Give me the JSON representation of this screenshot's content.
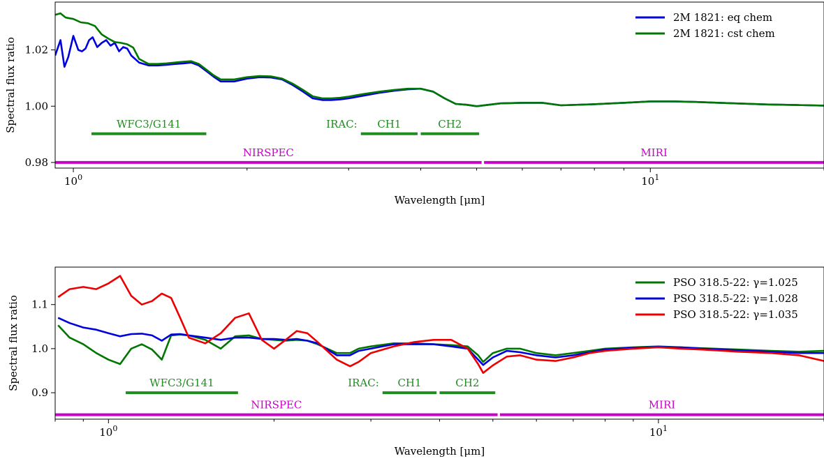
{
  "chart_data": [
    {
      "type": "line",
      "xscale": "log",
      "xlim": [
        0.93,
        20.0
      ],
      "ylim": [
        0.978,
        1.037
      ],
      "xlabel": "Wavelength [μm]",
      "ylabel": "Spectral flux ratio",
      "xticks": [
        {
          "value": 1,
          "base": "10",
          "exp": "0"
        },
        {
          "value": 10,
          "base": "10",
          "exp": "1"
        }
      ],
      "yticks": [
        {
          "value": 0.98,
          "label": "0.98"
        },
        {
          "value": 1.0,
          "label": "1.00"
        },
        {
          "value": 1.02,
          "label": "1.02"
        }
      ],
      "legend_position": "top-right",
      "series": [
        {
          "name": "2M 1821: eq chem",
          "color": "#0000dd",
          "x": [
            0.93,
            0.95,
            0.965,
            0.98,
            1.0,
            1.02,
            1.035,
            1.05,
            1.065,
            1.08,
            1.1,
            1.12,
            1.14,
            1.16,
            1.18,
            1.2,
            1.22,
            1.24,
            1.26,
            1.3,
            1.35,
            1.4,
            1.45,
            1.5,
            1.55,
            1.6,
            1.65,
            1.7,
            1.75,
            1.8,
            1.9,
            2.0,
            2.1,
            2.2,
            2.3,
            2.4,
            2.5,
            2.6,
            2.7,
            2.8,
            2.9,
            3.0,
            3.2,
            3.4,
            3.6,
            3.8,
            4.0,
            4.2,
            4.4,
            4.6,
            4.8,
            5.0,
            5.5,
            6.0,
            6.5,
            7.0,
            8.0,
            9.0,
            10.0,
            11.0,
            12.0,
            14.0,
            16.0,
            18.0,
            20.0
          ],
          "y": [
            1.018,
            1.0235,
            1.014,
            1.0175,
            1.025,
            1.02,
            1.0195,
            1.0205,
            1.0235,
            1.0245,
            1.021,
            1.0225,
            1.0235,
            1.0215,
            1.0225,
            1.0195,
            1.021,
            1.0205,
            1.018,
            1.0155,
            1.0145,
            1.0145,
            1.0147,
            1.015,
            1.0152,
            1.0155,
            1.0145,
            1.0125,
            1.0105,
            1.0088,
            1.0088,
            1.0098,
            1.0103,
            1.0102,
            1.0095,
            1.0075,
            1.0052,
            1.0028,
            1.0022,
            1.0022,
            1.0024,
            1.0028,
            1.0038,
            1.0048,
            1.0055,
            1.006,
            1.0062,
            1.0052,
            1.0028,
            1.0008,
            1.0005,
            1.0,
            1.001,
            1.0012,
            1.0012,
            1.0003,
            1.0007,
            1.0012,
            1.0017,
            1.0017,
            1.0015,
            1.001,
            1.0006,
            1.0004,
            1.0002
          ]
        },
        {
          "name": "2M 1821: cst chem",
          "color": "#007700",
          "x": [
            0.93,
            0.95,
            0.97,
            1.0,
            1.03,
            1.06,
            1.09,
            1.12,
            1.15,
            1.18,
            1.21,
            1.24,
            1.27,
            1.3,
            1.35,
            1.4,
            1.45,
            1.5,
            1.55,
            1.6,
            1.65,
            1.7,
            1.75,
            1.8,
            1.9,
            2.0,
            2.1,
            2.2,
            2.3,
            2.4,
            2.5,
            2.6,
            2.7,
            2.8,
            2.9,
            3.0,
            3.2,
            3.4,
            3.6,
            3.8,
            4.0,
            4.2,
            4.4,
            4.6,
            4.8,
            5.0,
            5.5,
            6.0,
            6.5,
            7.0,
            8.0,
            9.0,
            10.0,
            11.0,
            12.0,
            14.0,
            16.0,
            18.0,
            20.0
          ],
          "y": [
            1.0325,
            1.033,
            1.0315,
            1.031,
            1.0298,
            1.0295,
            1.0285,
            1.0255,
            1.024,
            1.0228,
            1.0225,
            1.022,
            1.0208,
            1.0168,
            1.015,
            1.015,
            1.0152,
            1.0155,
            1.0158,
            1.016,
            1.015,
            1.013,
            1.011,
            1.0095,
            1.0095,
            1.0103,
            1.0107,
            1.0106,
            1.0098,
            1.008,
            1.0058,
            1.0035,
            1.0028,
            1.0028,
            1.003,
            1.0034,
            1.0044,
            1.0052,
            1.0058,
            1.0062,
            1.0062,
            1.0052,
            1.0028,
            1.0008,
            1.0005,
            1.0,
            1.001,
            1.0012,
            1.0012,
            1.0003,
            1.0007,
            1.0012,
            1.0017,
            1.0017,
            1.0015,
            1.001,
            1.0006,
            1.0004,
            1.0002
          ]
        }
      ],
      "bands": [
        {
          "label": "WFC3/G141",
          "x0": 1.075,
          "x1": 1.7,
          "y": 0.9902,
          "color": "#228b22"
        },
        {
          "label": "CH1",
          "x0": 3.15,
          "x1": 3.95,
          "y": 0.9902,
          "color": "#228b22"
        },
        {
          "label": "CH2",
          "x0": 4.0,
          "x1": 5.05,
          "y": 0.9902,
          "color": "#228b22"
        },
        {
          "label": "NIRSPEC",
          "x0": 0.93,
          "x1": 5.1,
          "y": 0.98,
          "color": "#cc00cc"
        },
        {
          "label": "MIRI",
          "x0": 5.15,
          "x1": 20.0,
          "y": 0.98,
          "color": "#cc00cc"
        }
      ],
      "band_prefix": "IRAC:"
    },
    {
      "type": "line",
      "xscale": "log",
      "xlim": [
        0.8,
        20.0
      ],
      "ylim": [
        0.84,
        1.185
      ],
      "xlabel": "Wavelength [μm]",
      "ylabel": "Spectral flux ratio",
      "xticks": [
        {
          "value": 1,
          "base": "10",
          "exp": "0"
        },
        {
          "value": 10,
          "base": "10",
          "exp": "1"
        }
      ],
      "yticks": [
        {
          "value": 0.9,
          "label": "0.9"
        },
        {
          "value": 1.0,
          "label": "1.0"
        },
        {
          "value": 1.1,
          "label": "1.1"
        }
      ],
      "legend_position": "top-right",
      "series": [
        {
          "name": "PSO 318.5-22: γ=1.025",
          "color": "#007700",
          "x": [
            0.81,
            0.85,
            0.9,
            0.95,
            1.0,
            1.05,
            1.1,
            1.15,
            1.2,
            1.25,
            1.3,
            1.35,
            1.4,
            1.5,
            1.6,
            1.7,
            1.8,
            1.9,
            2.0,
            2.1,
            2.2,
            2.3,
            2.4,
            2.6,
            2.75,
            2.85,
            3.0,
            3.3,
            3.6,
            3.9,
            4.2,
            4.5,
            4.7,
            4.8,
            5.0,
            5.3,
            5.6,
            6.0,
            6.5,
            7.0,
            7.5,
            8.0,
            9.0,
            10.0,
            11.0,
            12.0,
            14.0,
            16.0,
            18.0,
            20.0
          ],
          "y": [
            1.053,
            1.025,
            1.01,
            0.99,
            0.975,
            0.965,
            1.0,
            1.01,
            0.998,
            0.975,
            1.03,
            1.032,
            1.03,
            1.02,
            1.0,
            1.028,
            1.03,
            1.022,
            1.02,
            1.018,
            1.02,
            1.018,
            1.01,
            0.99,
            0.99,
            1.0,
            1.005,
            1.012,
            1.012,
            1.01,
            1.008,
            1.005,
            0.985,
            0.97,
            0.99,
            1.0,
            1.0,
            0.99,
            0.985,
            0.99,
            0.995,
            1.0,
            1.003,
            1.005,
            1.003,
            1.001,
            0.998,
            0.995,
            0.993,
            0.995
          ]
        },
        {
          "name": "PSO 318.5-22: γ=1.028",
          "color": "#0000dd",
          "x": [
            0.81,
            0.85,
            0.9,
            0.95,
            1.0,
            1.05,
            1.1,
            1.15,
            1.2,
            1.25,
            1.3,
            1.35,
            1.4,
            1.5,
            1.6,
            1.7,
            1.8,
            1.9,
            2.0,
            2.1,
            2.2,
            2.3,
            2.4,
            2.6,
            2.75,
            2.85,
            3.0,
            3.3,
            3.6,
            3.9,
            4.2,
            4.5,
            4.7,
            4.8,
            5.0,
            5.3,
            5.6,
            6.0,
            6.5,
            7.0,
            7.5,
            8.0,
            9.0,
            10.0,
            11.0,
            12.0,
            14.0,
            16.0,
            18.0,
            20.0
          ],
          "y": [
            1.07,
            1.058,
            1.048,
            1.043,
            1.035,
            1.028,
            1.033,
            1.034,
            1.03,
            1.018,
            1.032,
            1.033,
            1.03,
            1.025,
            1.02,
            1.025,
            1.025,
            1.022,
            1.022,
            1.02,
            1.022,
            1.018,
            1.012,
            0.985,
            0.985,
            0.995,
            1.0,
            1.01,
            1.01,
            1.01,
            1.005,
            1.0,
            0.975,
            0.963,
            0.98,
            0.995,
            0.992,
            0.985,
            0.98,
            0.985,
            0.992,
            0.998,
            1.002,
            1.004,
            1.003,
            1.0,
            0.996,
            0.993,
            0.99,
            0.99
          ]
        },
        {
          "name": "PSO 318.5-22: γ=1.035",
          "color": "#ee0000",
          "x": [
            0.81,
            0.85,
            0.9,
            0.95,
            1.0,
            1.05,
            1.1,
            1.15,
            1.2,
            1.25,
            1.3,
            1.35,
            1.4,
            1.5,
            1.6,
            1.7,
            1.8,
            1.9,
            2.0,
            2.1,
            2.2,
            2.3,
            2.4,
            2.6,
            2.75,
            2.85,
            3.0,
            3.3,
            3.6,
            3.9,
            4.2,
            4.5,
            4.7,
            4.8,
            5.0,
            5.3,
            5.6,
            6.0,
            6.5,
            7.0,
            7.5,
            8.0,
            9.0,
            10.0,
            11.0,
            12.0,
            14.0,
            16.0,
            18.0,
            20.0
          ],
          "y": [
            1.117,
            1.135,
            1.14,
            1.135,
            1.148,
            1.165,
            1.12,
            1.1,
            1.108,
            1.125,
            1.115,
            1.07,
            1.025,
            1.012,
            1.035,
            1.07,
            1.08,
            1.02,
            1.0,
            1.02,
            1.04,
            1.035,
            1.015,
            0.975,
            0.96,
            0.97,
            0.99,
            1.005,
            1.015,
            1.02,
            1.02,
            1.0,
            0.965,
            0.945,
            0.962,
            0.982,
            0.985,
            0.975,
            0.972,
            0.98,
            0.99,
            0.995,
            1.0,
            1.003,
            1.0,
            0.998,
            0.993,
            0.99,
            0.985,
            0.972
          ]
        }
      ],
      "bands": [
        {
          "label": "WFC3/G141",
          "x0": 1.075,
          "x1": 1.72,
          "y": 0.9,
          "color": "#228b22"
        },
        {
          "label": "CH1",
          "x0": 3.15,
          "x1": 3.95,
          "y": 0.9,
          "color": "#228b22"
        },
        {
          "label": "CH2",
          "x0": 4.0,
          "x1": 5.05,
          "y": 0.9,
          "color": "#228b22"
        },
        {
          "label": "NIRSPEC",
          "x0": 0.8,
          "x1": 5.1,
          "y": 0.85,
          "color": "#cc00cc"
        },
        {
          "label": "MIRI",
          "x0": 5.15,
          "x1": 20.0,
          "y": 0.85,
          "color": "#cc00cc"
        }
      ],
      "band_prefix": "IRAC:"
    }
  ]
}
